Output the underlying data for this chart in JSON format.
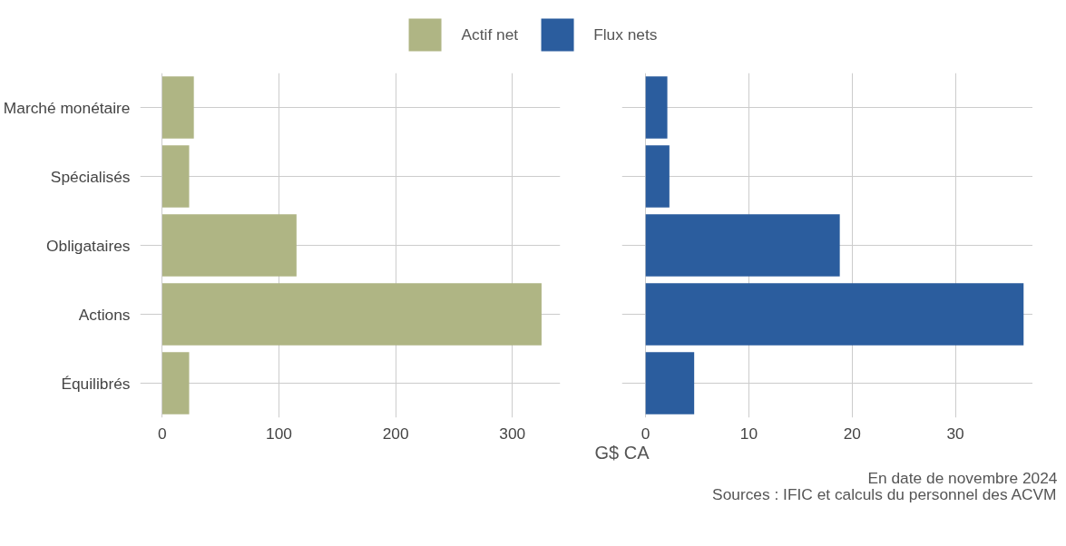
{
  "chart_data": [
    {
      "type": "bar",
      "orientation": "horizontal",
      "categories": [
        "Marché monétaire",
        "Spécialisés",
        "Obligataires",
        "Actions",
        "Équilibrés"
      ],
      "series": [
        {
          "name": "Actif net",
          "color": "#afb584",
          "values": [
            27,
            23,
            115,
            325,
            23
          ]
        }
      ],
      "xlim": [
        -19,
        341
      ],
      "xticks": [
        0,
        100,
        200,
        300
      ],
      "grid": true,
      "legend": "top",
      "xlabel": "G$ CA"
    },
    {
      "type": "bar",
      "orientation": "horizontal",
      "categories": [
        null,
        null,
        null,
        null,
        null
      ],
      "series": [
        {
          "name": "Flux nets",
          "color": "#2b5d9e",
          "values": [
            2.1,
            2.3,
            18.8,
            36.6,
            4.7
          ]
        }
      ],
      "xlim": [
        -2.3,
        37.5
      ],
      "xticks": [
        0,
        10,
        20,
        30
      ],
      "grid": true,
      "legend": "top",
      "annotations": [
        "En date de novembre 2024",
        "Sources : IFIC et calculs du personnel des ACVM"
      ]
    }
  ]
}
